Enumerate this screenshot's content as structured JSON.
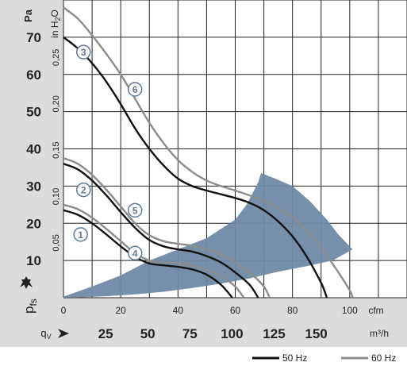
{
  "chart_data": {
    "type": "line",
    "title": "",
    "axes": {
      "left_pa": {
        "label": "Pa",
        "ticks": [
          "10",
          "20",
          "30",
          "40",
          "50",
          "60",
          "70"
        ],
        "range": [
          0,
          80
        ]
      },
      "left_inh2o": {
        "label_main": "in H",
        "label_sub": "2",
        "label_tail": "O",
        "ticks": [
          "0,05",
          "0,10",
          "0,15",
          "0,20",
          "0,25"
        ]
      },
      "bottom_cfm": {
        "label": "cfm",
        "ticks": [
          "0",
          "20",
          "40",
          "60",
          "80",
          "100"
        ],
        "range": [
          0,
          120
        ]
      },
      "bottom_m3h": {
        "label_prefix": "q",
        "label_sub": "V",
        "label": "m³/h",
        "ticks": [
          "25",
          "50",
          "75",
          "100",
          "125",
          "150"
        ]
      },
      "pfs_label": "p",
      "pfs_sub": "fs"
    },
    "grid": true,
    "legend": {
      "placement": "bottom-right",
      "entries": [
        {
          "name": "50 Hz",
          "color": "#111111"
        },
        {
          "name": "60 Hz",
          "color": "#8c8c8c"
        }
      ]
    },
    "shaded_region": {
      "color": "#6f8aa6",
      "upper": [
        [
          0,
          0.3
        ],
        [
          10,
          3
        ],
        [
          20,
          6
        ],
        [
          30,
          10
        ],
        [
          40,
          13
        ],
        [
          50,
          16
        ],
        [
          60,
          21
        ],
        [
          64,
          25
        ],
        [
          68,
          31
        ],
        [
          69,
          33.5
        ]
      ],
      "right": [
        [
          69,
          33.5
        ],
        [
          74,
          32
        ],
        [
          80,
          30
        ],
        [
          86,
          26
        ],
        [
          92,
          21
        ],
        [
          96,
          17
        ],
        [
          101,
          13
        ]
      ],
      "lower": [
        [
          101,
          13
        ],
        [
          94,
          10
        ],
        [
          85,
          8.5
        ],
        [
          75,
          7
        ],
        [
          65,
          5.2
        ],
        [
          55,
          3.8
        ],
        [
          45,
          2.6
        ],
        [
          35,
          1.6
        ],
        [
          25,
          0.9
        ],
        [
          15,
          0.4
        ],
        [
          5,
          0.05
        ],
        [
          0,
          0
        ]
      ]
    },
    "series": [
      {
        "name": "1",
        "freq": "50 Hz",
        "color": "#111111",
        "points": [
          [
            0,
            23.5
          ],
          [
            5,
            22.3
          ],
          [
            10,
            20
          ],
          [
            15,
            17
          ],
          [
            20,
            13.8
          ],
          [
            25,
            11
          ],
          [
            30,
            9.2
          ],
          [
            35,
            8.7
          ],
          [
            40,
            8.3
          ],
          [
            45,
            7.6
          ],
          [
            50,
            6.2
          ],
          [
            55,
            3.5
          ],
          [
            59,
            0
          ]
        ]
      },
      {
        "name": "4",
        "freq": "60 Hz",
        "color": "#8c8c8c",
        "points": [
          [
            0,
            25
          ],
          [
            5,
            23.8
          ],
          [
            10,
            21.5
          ],
          [
            15,
            18.5
          ],
          [
            20,
            15.2
          ],
          [
            25,
            12
          ],
          [
            30,
            10
          ],
          [
            35,
            9.5
          ],
          [
            40,
            9.2
          ],
          [
            45,
            8.6
          ],
          [
            50,
            7.5
          ],
          [
            55,
            5.8
          ],
          [
            60,
            3
          ],
          [
            63,
            0
          ]
        ]
      },
      {
        "name": "2",
        "freq": "50 Hz",
        "color": "#111111",
        "points": [
          [
            0,
            36
          ],
          [
            5,
            34.5
          ],
          [
            10,
            31.5
          ],
          [
            15,
            27.5
          ],
          [
            20,
            23
          ],
          [
            25,
            18.8
          ],
          [
            30,
            15.5
          ],
          [
            35,
            13.8
          ],
          [
            40,
            13
          ],
          [
            45,
            12.4
          ],
          [
            50,
            11.2
          ],
          [
            55,
            9.5
          ],
          [
            60,
            6.8
          ],
          [
            65,
            3.5
          ],
          [
            68,
            0
          ]
        ]
      },
      {
        "name": "5",
        "freq": "60 Hz",
        "color": "#8c8c8c",
        "points": [
          [
            0,
            37.5
          ],
          [
            5,
            36
          ],
          [
            10,
            33
          ],
          [
            15,
            29
          ],
          [
            20,
            24.5
          ],
          [
            25,
            20
          ],
          [
            30,
            16.8
          ],
          [
            35,
            15.2
          ],
          [
            40,
            14.5
          ],
          [
            45,
            14
          ],
          [
            50,
            13
          ],
          [
            55,
            11.5
          ],
          [
            60,
            9.5
          ],
          [
            65,
            6.8
          ],
          [
            70,
            3
          ],
          [
            72,
            0
          ]
        ]
      },
      {
        "name": "3",
        "freq": "50 Hz",
        "color": "#111111",
        "points": [
          [
            0,
            70
          ],
          [
            5,
            67
          ],
          [
            10,
            63
          ],
          [
            15,
            58
          ],
          [
            20,
            52
          ],
          [
            25,
            45.5
          ],
          [
            30,
            40
          ],
          [
            35,
            35.5
          ],
          [
            40,
            32
          ],
          [
            45,
            30
          ],
          [
            50,
            28.8
          ],
          [
            55,
            27.8
          ],
          [
            60,
            26.8
          ],
          [
            65,
            25.5
          ],
          [
            70,
            23.5
          ],
          [
            75,
            20.5
          ],
          [
            80,
            16.5
          ],
          [
            85,
            11
          ],
          [
            90,
            4
          ],
          [
            92,
            0
          ]
        ]
      },
      {
        "name": "6",
        "freq": "60 Hz",
        "color": "#8c8c8c",
        "points": [
          [
            0,
            78
          ],
          [
            5,
            75
          ],
          [
            10,
            70.5
          ],
          [
            15,
            65.5
          ],
          [
            20,
            60
          ],
          [
            25,
            53.5
          ],
          [
            30,
            47
          ],
          [
            35,
            41.5
          ],
          [
            40,
            37
          ],
          [
            45,
            33.8
          ],
          [
            50,
            31.5
          ],
          [
            55,
            30
          ],
          [
            60,
            28.8
          ],
          [
            65,
            27.5
          ],
          [
            70,
            26
          ],
          [
            75,
            24
          ],
          [
            80,
            21.5
          ],
          [
            85,
            18
          ],
          [
            90,
            13.5
          ],
          [
            95,
            8
          ],
          [
            100,
            2
          ],
          [
            101,
            0
          ]
        ]
      }
    ],
    "curve_markers": [
      {
        "label": "1",
        "pos": [
          6,
          17
        ]
      },
      {
        "label": "2",
        "pos": [
          7,
          29
        ]
      },
      {
        "label": "3",
        "pos": [
          7,
          66
        ]
      },
      {
        "label": "4",
        "pos": [
          25,
          12
        ]
      },
      {
        "label": "5",
        "pos": [
          25,
          23.5
        ]
      },
      {
        "label": "6",
        "pos": [
          25,
          56
        ]
      }
    ]
  }
}
